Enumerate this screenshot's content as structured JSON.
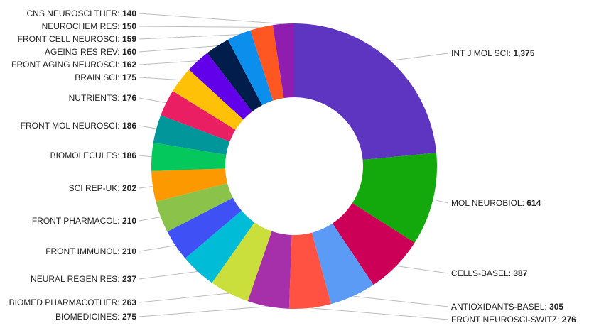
{
  "chart_data": {
    "type": "pie",
    "title": "",
    "categories": [
      "INT J MOL SCI",
      "MOL NEUROBIOL",
      "CELLS-BASEL",
      "ANTIOXIDANTS-BASEL",
      "FRONT NEUROSCI-SWITZ",
      "BIOMEDICINES",
      "BIOMED PHARMACOTHER",
      "NEURAL REGEN RES",
      "FRONT IMMUNOL",
      "FRONT PHARMACOL",
      "SCI REP-UK",
      "BIOMOLECULES",
      "FRONT MOL NEUROSCI",
      "NUTRIENTS",
      "BRAIN SCI",
      "FRONT AGING NEUROSCI",
      "AGEING RES REV",
      "FRONT CELL NEUROSCI",
      "NEUROCHEM RES",
      "CNS NEUROSCI THER"
    ],
    "values": [
      1375,
      614,
      387,
      305,
      276,
      275,
      263,
      237,
      210,
      210,
      202,
      186,
      186,
      176,
      175,
      162,
      160,
      159,
      150,
      140
    ],
    "value_labels": [
      "1,375",
      "614",
      "387",
      "305",
      "276",
      "275",
      "263",
      "237",
      "210",
      "210",
      "202",
      "186",
      "186",
      "176",
      "175",
      "162",
      "160",
      "159",
      "150",
      "140"
    ],
    "colors": [
      "#5e35c1",
      "#13a80b",
      "#cc0057",
      "#5b9af5",
      "#ff5243",
      "#a630aa",
      "#cbdf3c",
      "#00bcd6",
      "#3f51f5",
      "#8bc34a",
      "#fd9900",
      "#05c85c",
      "#00969a",
      "#e91e63",
      "#ffc107",
      "#6200ea",
      "#001d4c",
      "#0b8eec",
      "#ff5722",
      "#8e1db0"
    ],
    "donut": true,
    "legend": "none",
    "label_style": "outside with leader lines"
  }
}
